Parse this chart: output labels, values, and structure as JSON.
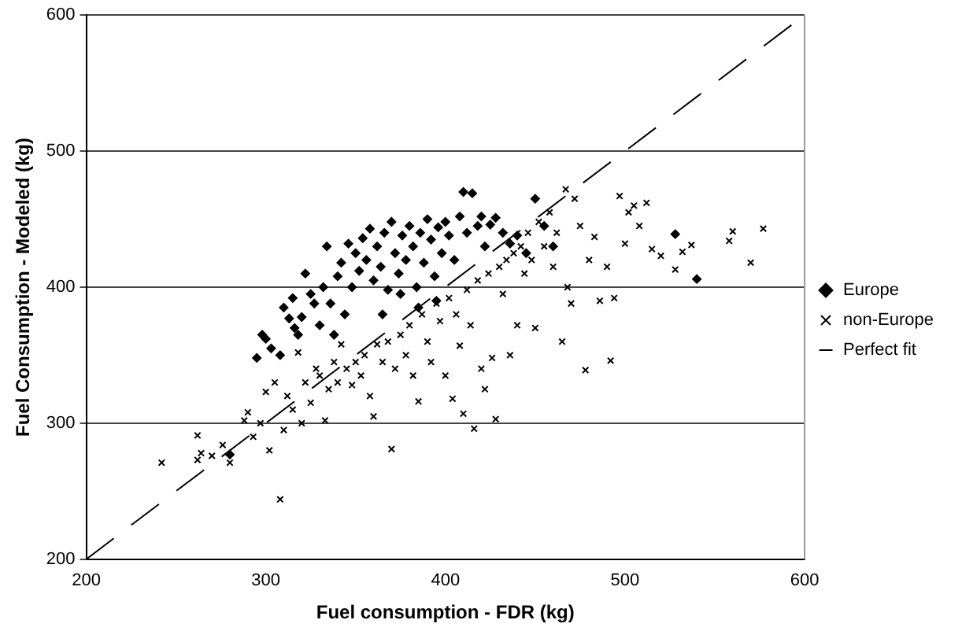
{
  "chart_data": {
    "type": "scatter",
    "xlabel": "Fuel consumption - FDR (kg)",
    "ylabel": "Fuel Consumption - Modeled (kg)",
    "xlim": [
      200,
      600
    ],
    "xticks": [
      200,
      300,
      400,
      500,
      600
    ],
    "ylim": [
      200,
      600
    ],
    "yticks": [
      200,
      300,
      400,
      500,
      600
    ],
    "grid": "y",
    "legend": "right",
    "series": [
      {
        "name": "Europe",
        "color": "#000000",
        "marker": "diamond",
        "x": [
          280,
          295,
          298,
          300,
          303,
          308,
          310,
          313,
          315,
          316,
          318,
          320,
          322,
          325,
          327,
          330,
          332,
          334,
          336,
          338,
          340,
          342,
          344,
          346,
          348,
          350,
          352,
          354,
          356,
          358,
          360,
          362,
          364,
          366,
          368,
          370,
          372,
          374,
          376,
          378,
          380,
          382,
          384,
          386,
          388,
          390,
          392,
          394,
          396,
          398,
          400,
          402,
          405,
          408,
          410,
          412,
          415,
          418,
          420,
          422,
          425,
          428,
          432,
          436,
          440,
          445,
          450,
          455,
          460,
          528,
          540,
          395,
          385,
          375,
          365
        ],
        "values": [
          277,
          348,
          365,
          362,
          355,
          350,
          385,
          377,
          392,
          370,
          365,
          378,
          410,
          395,
          388,
          372,
          400,
          430,
          388,
          365,
          408,
          418,
          380,
          432,
          400,
          425,
          412,
          436,
          420,
          443,
          405,
          430,
          415,
          440,
          398,
          448,
          425,
          410,
          438,
          420,
          445,
          430,
          400,
          440,
          418,
          450,
          435,
          408,
          444,
          425,
          448,
          438,
          420,
          452,
          470,
          440,
          469,
          445,
          452,
          430,
          446,
          451,
          440,
          432,
          438,
          425,
          465,
          445,
          430,
          439,
          406,
          390,
          385,
          395,
          380
        ]
      },
      {
        "name": "non-Europe",
        "color": "#000000",
        "marker": "cross",
        "x": [
          242,
          262,
          262,
          264,
          270,
          276,
          280,
          288,
          290,
          293,
          297,
          300,
          302,
          305,
          308,
          310,
          312,
          315,
          318,
          320,
          322,
          325,
          328,
          330,
          333,
          335,
          338,
          340,
          342,
          345,
          348,
          350,
          353,
          355,
          358,
          360,
          362,
          365,
          368,
          370,
          372,
          375,
          378,
          380,
          382,
          385,
          387,
          390,
          392,
          395,
          397,
          400,
          402,
          404,
          406,
          408,
          410,
          412,
          414,
          416,
          418,
          420,
          422,
          424,
          426,
          428,
          430,
          432,
          434,
          436,
          438,
          440,
          442,
          444,
          446,
          448,
          450,
          452,
          455,
          458,
          460,
          462,
          465,
          467,
          468,
          470,
          472,
          475,
          478,
          480,
          483,
          486,
          490,
          492,
          494,
          497,
          500,
          502,
          505,
          508,
          512,
          515,
          520,
          528,
          532,
          537,
          558,
          560,
          570,
          577
        ],
        "values": [
          271,
          291,
          273,
          278,
          276,
          284,
          271,
          302,
          308,
          290,
          300,
          323,
          280,
          330,
          244,
          295,
          320,
          310,
          352,
          300,
          330,
          315,
          340,
          335,
          302,
          325,
          345,
          330,
          358,
          340,
          328,
          345,
          335,
          350,
          320,
          305,
          358,
          345,
          360,
          281,
          340,
          365,
          350,
          372,
          335,
          316,
          380,
          360,
          345,
          388,
          375,
          335,
          392,
          318,
          380,
          357,
          307,
          398,
          372,
          296,
          405,
          340,
          325,
          410,
          348,
          303,
          415,
          395,
          420,
          350,
          425,
          372,
          430,
          410,
          440,
          420,
          370,
          448,
          430,
          455,
          415,
          440,
          360,
          472,
          400,
          388,
          465,
          445,
          339,
          420,
          437,
          390,
          415,
          346,
          392,
          467,
          432,
          455,
          460,
          445,
          462,
          428,
          423,
          413,
          426,
          431,
          434,
          441,
          418,
          443
        ]
      },
      {
        "name": "Perfect fit",
        "type": "line",
        "color": "#000000",
        "line_style": "dashed",
        "marker": "none",
        "x": [
          200,
          600
        ],
        "values": [
          200,
          600
        ]
      }
    ]
  }
}
